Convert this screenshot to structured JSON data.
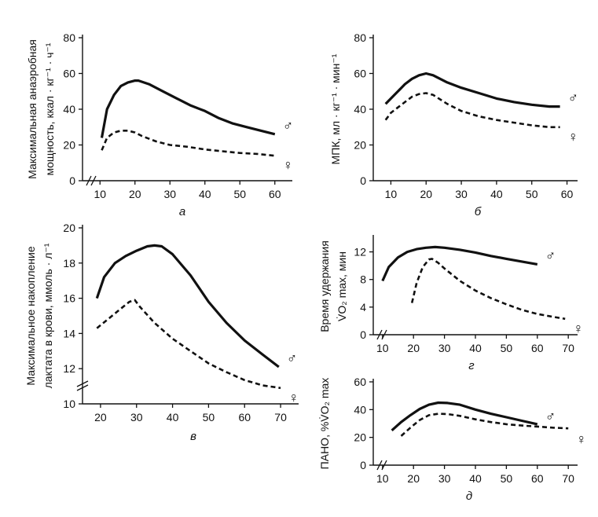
{
  "chart_data": [
    {
      "id": "a",
      "type": "line",
      "panel_label": "а",
      "ylabel_lines": [
        "Максимальная анаэробная",
        "мощность, ккал · кг⁻¹ · ч⁻¹"
      ],
      "xlim": [
        5,
        65
      ],
      "ylim": [
        0,
        80
      ],
      "xticks": [
        10,
        20,
        30,
        40,
        50,
        60
      ],
      "yticks": [
        0,
        20,
        40,
        60,
        80
      ],
      "axis_break": true,
      "series": [
        {
          "name": "♂",
          "style": "solid",
          "x": [
            10.5,
            12,
            14,
            16,
            18,
            20,
            21,
            24,
            28,
            32,
            36,
            40,
            44,
            48,
            52,
            56,
            60
          ],
          "y": [
            24,
            40,
            48,
            53,
            55,
            56,
            56,
            54,
            50,
            46,
            42,
            39,
            35,
            32,
            30,
            28,
            26
          ]
        },
        {
          "name": "♀",
          "style": "dashed",
          "x": [
            10.5,
            12,
            14,
            16,
            18,
            20,
            22,
            26,
            30,
            35,
            40,
            45,
            50,
            55,
            60
          ],
          "y": [
            17,
            24,
            27,
            28,
            28,
            27,
            25,
            22,
            20,
            19,
            17.5,
            16.5,
            15.5,
            15,
            14
          ]
        }
      ]
    },
    {
      "id": "b",
      "type": "line",
      "panel_label": "б",
      "ylabel_lines": [
        "МПК, мл · кг⁻¹ · мин⁻¹"
      ],
      "xlim": [
        5,
        63
      ],
      "ylim": [
        0,
        80
      ],
      "xticks": [
        10,
        20,
        30,
        40,
        50,
        60
      ],
      "yticks": [
        0,
        20,
        40,
        60,
        80
      ],
      "axis_break": false,
      "series": [
        {
          "name": "♂",
          "style": "solid",
          "x": [
            8.5,
            10,
            12,
            14,
            16,
            18,
            20,
            22,
            26,
            30,
            35,
            40,
            45,
            50,
            55,
            58
          ],
          "y": [
            43,
            46,
            50,
            54,
            57,
            59,
            60,
            59,
            55,
            52,
            49,
            46,
            44,
            42.5,
            41.5,
            41.5
          ]
        },
        {
          "name": "♀",
          "style": "dashed",
          "x": [
            8.5,
            10,
            12,
            14,
            16,
            18,
            20,
            22,
            26,
            30,
            35,
            40,
            45,
            50,
            55,
            58
          ],
          "y": [
            34,
            38,
            41,
            44,
            47,
            48.5,
            49,
            48,
            43,
            39,
            36,
            34,
            32.5,
            31,
            30,
            30
          ]
        }
      ]
    },
    {
      "id": "v",
      "type": "line",
      "panel_label": "в",
      "ylabel_lines": [
        "Максимальное накопление",
        "лактата в крови, ммоль · л⁻¹"
      ],
      "xlim": [
        15,
        75
      ],
      "ylim": [
        10,
        20
      ],
      "xticks": [
        20,
        30,
        40,
        50,
        60,
        70
      ],
      "yticks": [
        10,
        12,
        14,
        16,
        18,
        20
      ],
      "axis_break": true,
      "series": [
        {
          "name": "♂",
          "style": "solid",
          "x": [
            19,
            21,
            24,
            27,
            30,
            33,
            35,
            37,
            40,
            45,
            50,
            55,
            60,
            65,
            69.5
          ],
          "y": [
            16,
            17.2,
            18,
            18.4,
            18.7,
            18.95,
            19,
            18.95,
            18.5,
            17.3,
            15.8,
            14.6,
            13.6,
            12.8,
            12.1
          ]
        },
        {
          "name": "♀",
          "style": "dashed",
          "x": [
            19,
            22,
            25,
            28,
            29.5,
            31,
            35,
            40,
            45,
            50,
            55,
            60,
            65,
            70
          ],
          "y": [
            14.3,
            14.8,
            15.3,
            15.8,
            15.9,
            15.5,
            14.6,
            13.7,
            13,
            12.3,
            11.8,
            11.35,
            11.05,
            10.9
          ]
        }
      ]
    },
    {
      "id": "g",
      "type": "line",
      "panel_label": "г",
      "ylabel_lines": [
        "Время удержания",
        "V̇O₂ max, мин"
      ],
      "xlim": [
        7,
        73
      ],
      "ylim": [
        0,
        14
      ],
      "xticks": [
        10,
        20,
        30,
        40,
        50,
        60,
        70
      ],
      "yticks": [
        0,
        4,
        8,
        12
      ],
      "axis_break": true,
      "series": [
        {
          "name": "♂",
          "style": "solid",
          "x": [
            10,
            12,
            15,
            18,
            21,
            24,
            27,
            30,
            35,
            40,
            45,
            50,
            55,
            60
          ],
          "y": [
            7.8,
            9.8,
            11.2,
            12,
            12.4,
            12.6,
            12.7,
            12.6,
            12.3,
            11.9,
            11.4,
            11,
            10.6,
            10.2
          ]
        },
        {
          "name": "♀",
          "style": "dashed",
          "x": [
            19.5,
            21,
            23,
            25,
            26,
            28,
            30,
            35,
            40,
            45,
            50,
            55,
            60,
            65,
            69
          ],
          "y": [
            4.6,
            7.5,
            9.8,
            10.9,
            11,
            10.4,
            9.6,
            7.8,
            6.4,
            5.3,
            4.4,
            3.6,
            3,
            2.6,
            2.3
          ]
        }
      ]
    },
    {
      "id": "d",
      "type": "line",
      "panel_label": "д",
      "ylabel_lines": [
        "ПАНО, %V̇O₂ max"
      ],
      "xlim": [
        7,
        73
      ],
      "ylim": [
        0,
        60
      ],
      "xticks": [
        10,
        20,
        30,
        40,
        50,
        60,
        70
      ],
      "yticks": [
        0,
        20,
        40,
        60
      ],
      "axis_break": true,
      "series": [
        {
          "name": "♂",
          "style": "solid",
          "x": [
            13,
            16,
            19,
            22,
            25,
            28,
            31,
            35,
            40,
            45,
            50,
            55,
            60
          ],
          "y": [
            25,
            31,
            36,
            40.5,
            43.5,
            45,
            44.8,
            43.5,
            40,
            37,
            34.5,
            32,
            29.5
          ]
        },
        {
          "name": "♀",
          "style": "dashed",
          "x": [
            16,
            19,
            22,
            25,
            28,
            31,
            35,
            40,
            45,
            50,
            55,
            60,
            65,
            70
          ],
          "y": [
            21,
            27,
            32.5,
            36,
            37,
            36.8,
            35.5,
            33,
            31,
            29.5,
            28.5,
            27.8,
            27,
            26.5
          ]
        }
      ]
    }
  ]
}
